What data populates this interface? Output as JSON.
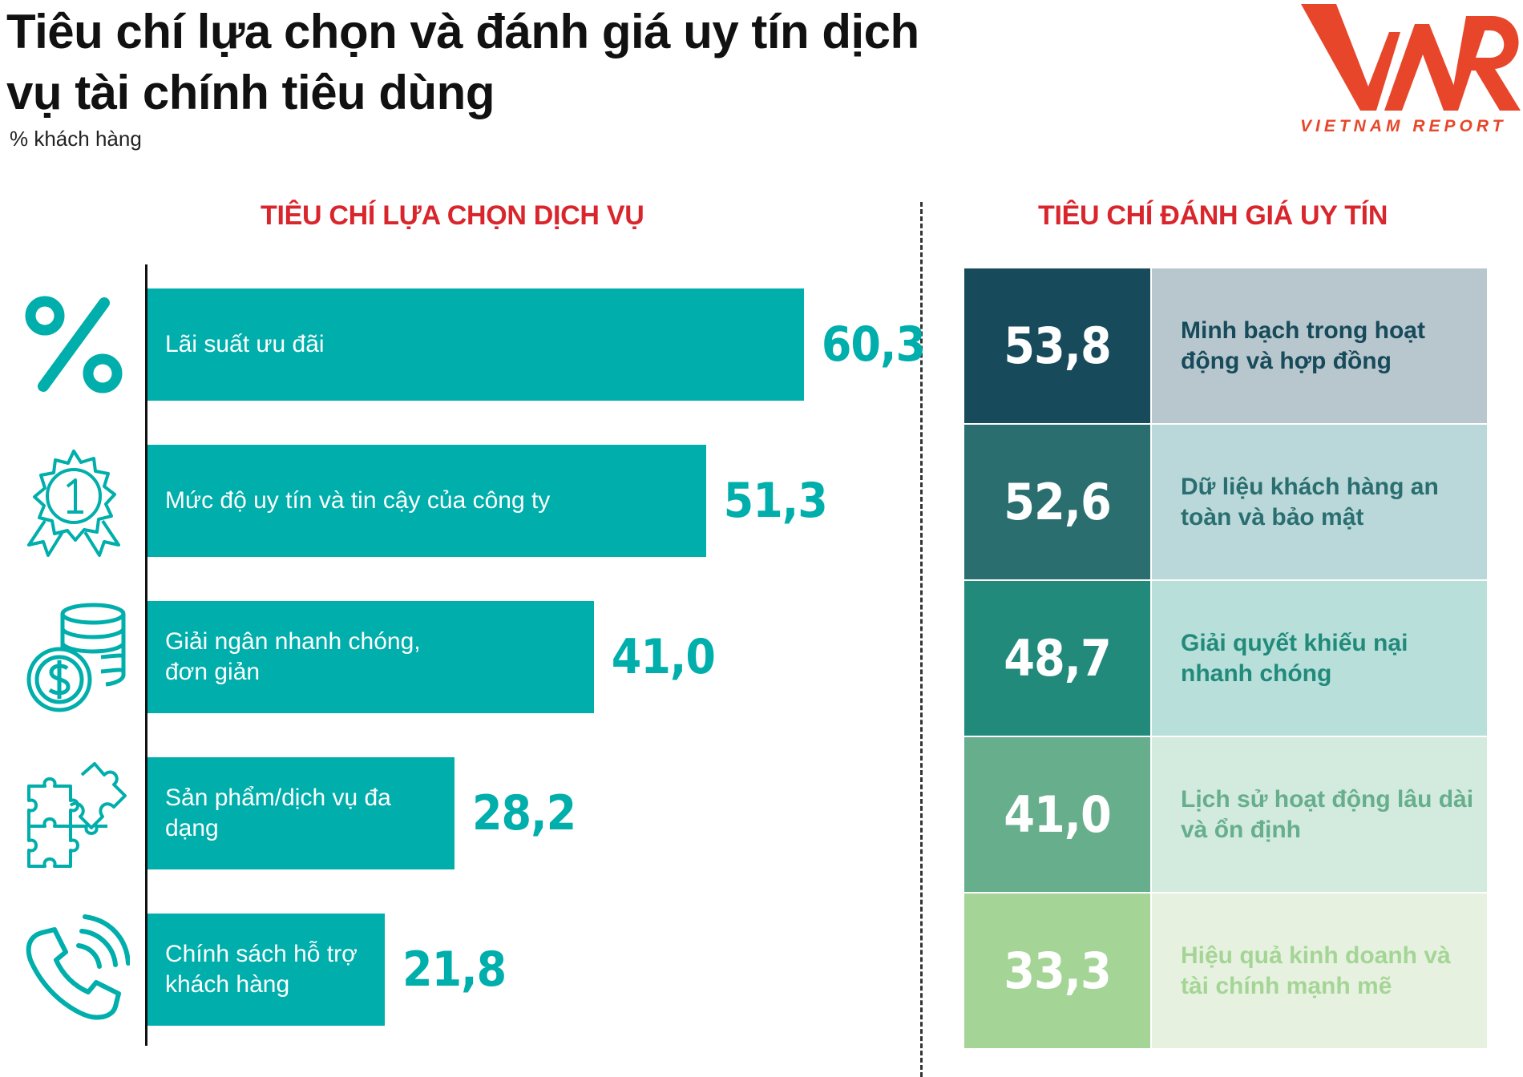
{
  "header": {
    "title": "Tiêu chí lựa chọn và đánh giá uy tín dịch vụ tài chính tiêu dùng",
    "subtitle": "% khách hàng"
  },
  "logo": {
    "mark": "VNR",
    "text": "VIETNAM REPORT",
    "color": "#e8462a"
  },
  "colors": {
    "bar": "#00aeab",
    "header_red": "#d9262c",
    "grid_num": [
      "#174a5b",
      "#2a6e70",
      "#218a7b",
      "#66ae8c",
      "#a5d596"
    ],
    "grid_text_bg": [
      "#b8c7cd",
      "#bad8da",
      "#b9dfda",
      "#d3ebde",
      "#e6f2df"
    ],
    "grid_text": [
      "#174a5b",
      "#2a6e70",
      "#218a7b",
      "#66ae8c",
      "#a5d596"
    ]
  },
  "chart_data": [
    {
      "type": "bar",
      "orientation": "horizontal",
      "title": "TIÊU CHÍ LỰA CHỌN DỊCH VỤ",
      "categories": [
        "Lãi suất ưu đãi",
        "Mức độ uy tín và tin cậy của công ty",
        "Giải ngân nhanh chóng, đơn giản",
        "Sản phẩm/dịch vụ đa dạng",
        "Chính sách hỗ trợ khách hàng"
      ],
      "values": [
        60.3,
        51.3,
        41.0,
        28.2,
        21.8
      ],
      "value_labels": [
        "60,3",
        "51,3",
        "41,0",
        "28,2",
        "21,8"
      ],
      "icons": [
        "percent-icon",
        "award-badge-icon",
        "coins-dollar-icon",
        "puzzle-icon",
        "phone-ringing-icon"
      ],
      "xlim": [
        0,
        100
      ]
    },
    {
      "type": "table",
      "title": "TIÊU CHÍ ĐÁNH GIÁ UY TÍN",
      "rows": [
        {
          "value": "53,8",
          "label": "Minh bạch trong hoạt động và hợp đồng"
        },
        {
          "value": "52,6",
          "label": "Dữ liệu khách hàng an toàn và bảo mật"
        },
        {
          "value": "48,7",
          "label": "Giải quyết khiếu nại nhanh chóng"
        },
        {
          "value": "41,0",
          "label": "Lịch sử hoạt động lâu dài và ổn định"
        },
        {
          "value": "33,3",
          "label": "Hiệu quả kinh doanh và tài chính mạnh mẽ"
        }
      ]
    }
  ]
}
